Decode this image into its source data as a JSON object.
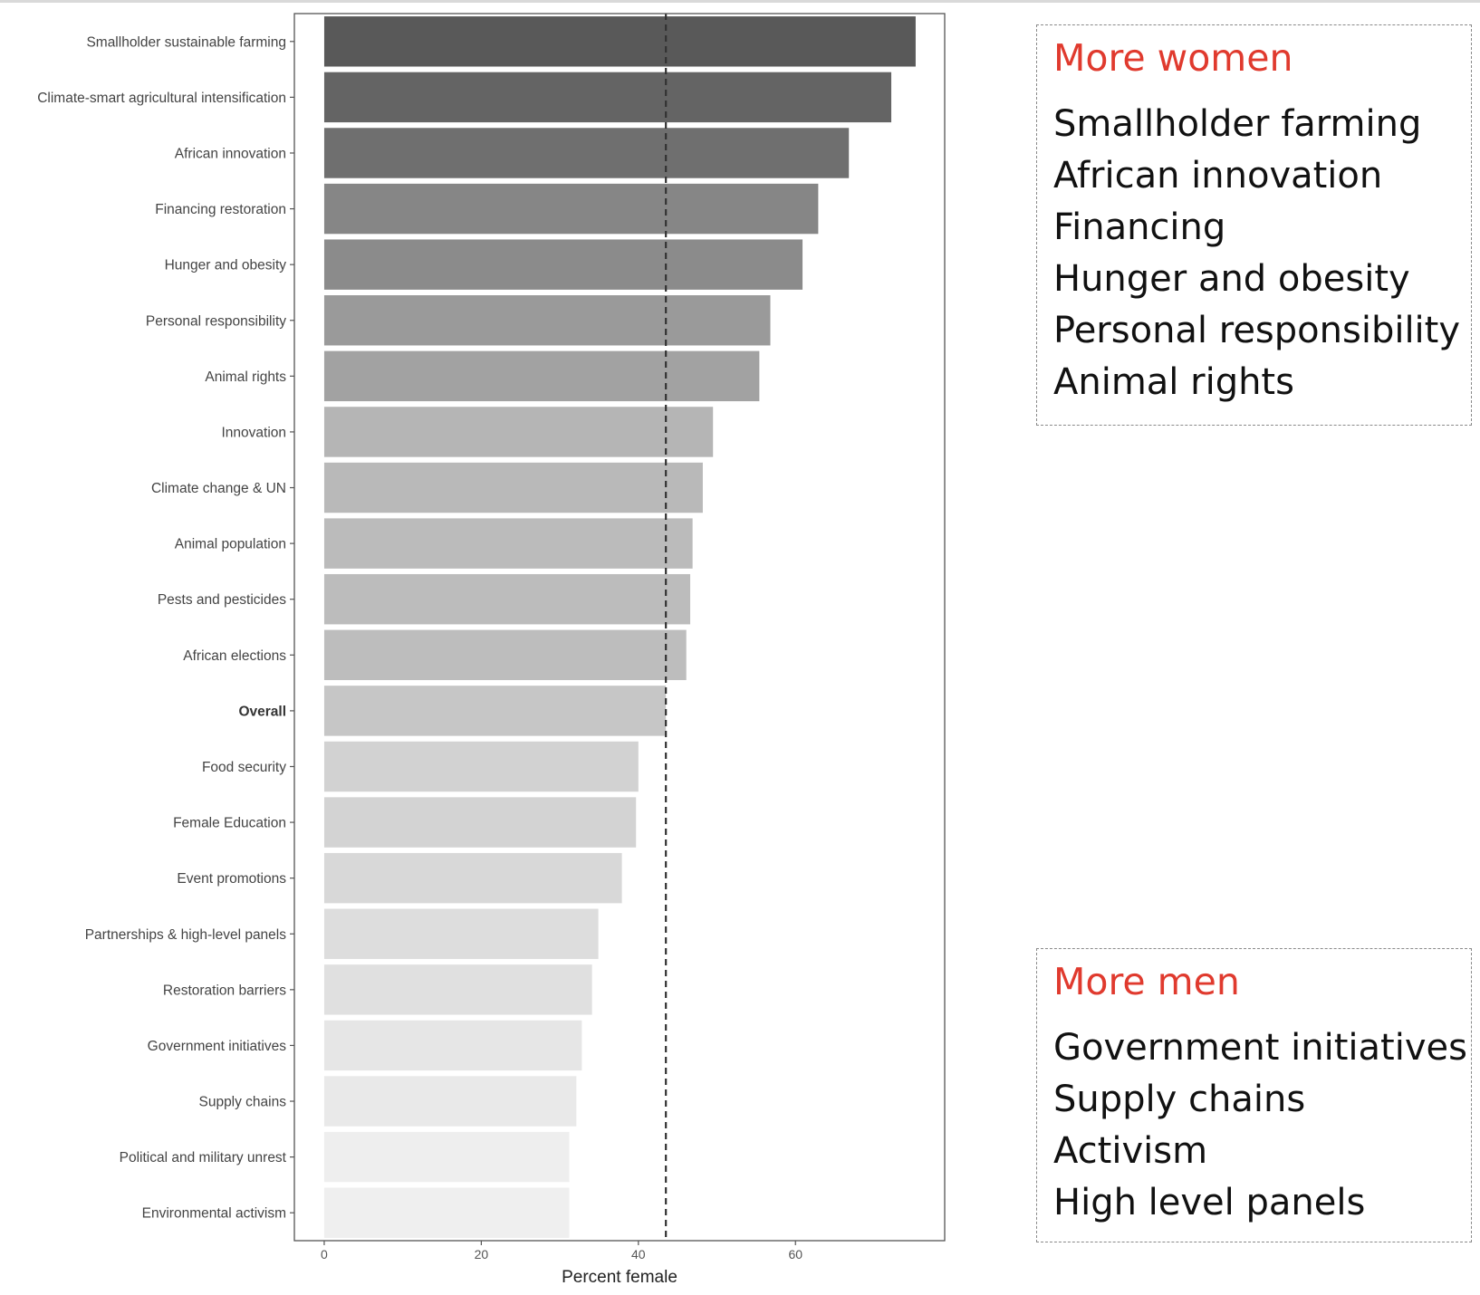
{
  "chart_data": {
    "type": "bar",
    "orientation": "horizontal",
    "categories": [
      "Smallholder sustainable farming",
      "Climate-smart agricultural intensification",
      "African innovation",
      "Financing restoration",
      "Hunger and obesity",
      "Personal responsibility",
      "Animal rights",
      "Innovation",
      "Climate change & UN",
      "Animal population",
      "Pests and pesticides",
      "African elections",
      "Overall",
      "Food security",
      "Female Education",
      "Event promotions",
      "Partnerships & high-level panels",
      "Restoration barriers",
      "Government initiatives",
      "Supply chains",
      "Political and military unrest",
      "Environmental activism"
    ],
    "values": [
      75.3,
      72.2,
      66.8,
      62.9,
      60.9,
      56.8,
      55.4,
      49.5,
      48.2,
      46.9,
      46.6,
      46.1,
      43.5,
      40.0,
      39.7,
      37.9,
      34.9,
      34.1,
      32.8,
      32.1,
      31.2,
      31.2
    ],
    "bold_categories": [
      "Overall"
    ],
    "xlabel": "Percent female",
    "ylabel": "",
    "xlim": [
      -3.8,
      79
    ],
    "xticks": [
      0,
      20,
      40,
      60
    ],
    "reference_line": 43.5,
    "grid": false,
    "bar_colors": [
      "#595959",
      "#646464",
      "#6f6f6f",
      "#868686",
      "#8b8b8b",
      "#9a9a9a",
      "#a2a2a2",
      "#b5b5b5",
      "#b9b9b9",
      "#bbbbbb",
      "#bcbcbc",
      "#bdbdbd",
      "#c6c6c6",
      "#d2d2d2",
      "#d3d3d3",
      "#d8d8d8",
      "#dddddd",
      "#e0e0e0",
      "#e6e6e6",
      "#e9e9e9",
      "#eeeeee",
      "#efefef"
    ]
  },
  "callouts": {
    "women": {
      "title": "More women",
      "items": [
        "Smallholder farming",
        "African innovation",
        "Financing",
        "Hunger and obesity",
        "Personal responsibility",
        "Animal rights"
      ]
    },
    "men": {
      "title": "More men",
      "items": [
        "Government initiatives",
        "Supply chains",
        "Activism",
        "High level panels"
      ]
    }
  },
  "colors": {
    "callout_title": "#e03a2e",
    "reference_line": "#333333",
    "panel_border": "#555555"
  }
}
